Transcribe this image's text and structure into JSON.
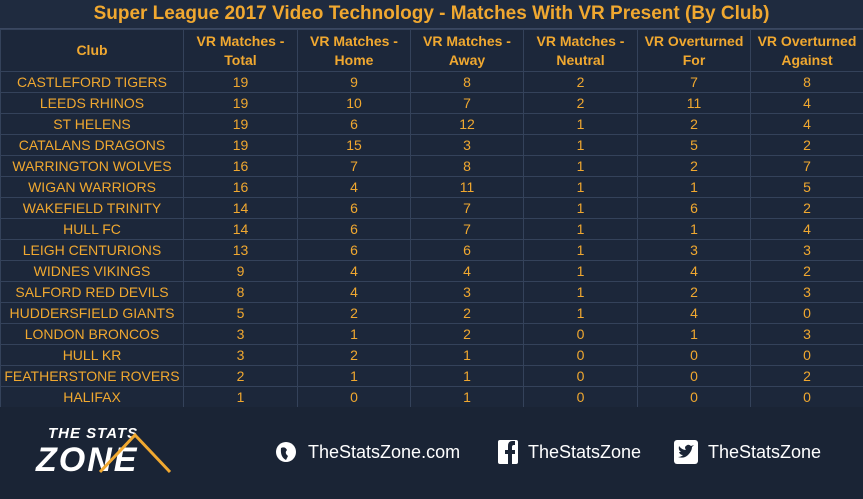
{
  "title": "Super League 2017 Video Technology - Matches With VR Present (By Club)",
  "table": {
    "columns": [
      [
        "Club"
      ],
      [
        "VR Matches -",
        "Total"
      ],
      [
        "VR Matches -",
        "Home"
      ],
      [
        "VR Matches -",
        "Away"
      ],
      [
        "VR Matches -",
        "Neutral"
      ],
      [
        "VR Overturned",
        "For"
      ],
      [
        "VR Overturned",
        "Against"
      ]
    ],
    "rows": [
      [
        "CASTLEFORD TIGERS",
        19,
        9,
        8,
        2,
        7,
        8
      ],
      [
        "LEEDS RHINOS",
        19,
        10,
        7,
        2,
        11,
        4
      ],
      [
        "ST HELENS",
        19,
        6,
        12,
        1,
        2,
        4
      ],
      [
        "CATALANS DRAGONS",
        19,
        15,
        3,
        1,
        5,
        2
      ],
      [
        "WARRINGTON WOLVES",
        16,
        7,
        8,
        1,
        2,
        7
      ],
      [
        "WIGAN WARRIORS",
        16,
        4,
        11,
        1,
        1,
        5
      ],
      [
        "WAKEFIELD TRINITY",
        14,
        6,
        7,
        1,
        6,
        2
      ],
      [
        "HULL FC",
        14,
        6,
        7,
        1,
        1,
        4
      ],
      [
        "LEIGH CENTURIONS",
        13,
        6,
        6,
        1,
        3,
        3
      ],
      [
        "WIDNES VIKINGS",
        9,
        4,
        4,
        1,
        4,
        2
      ],
      [
        "SALFORD RED DEVILS",
        8,
        4,
        3,
        1,
        2,
        3
      ],
      [
        "HUDDERSFIELD GIANTS",
        5,
        2,
        2,
        1,
        4,
        0
      ],
      [
        "LONDON BRONCOS",
        3,
        1,
        2,
        0,
        1,
        3
      ],
      [
        "HULL KR",
        3,
        2,
        1,
        0,
        0,
        0
      ],
      [
        "FEATHERSTONE ROVERS",
        2,
        1,
        1,
        0,
        0,
        2
      ],
      [
        "HALIFAX",
        1,
        0,
        1,
        0,
        0,
        0
      ]
    ]
  },
  "footer": {
    "logo": [
      "THE STATS",
      "ZONE"
    ],
    "website": "TheStatsZone.com",
    "facebook": "TheStatsZone",
    "twitter": "TheStatsZone"
  }
}
